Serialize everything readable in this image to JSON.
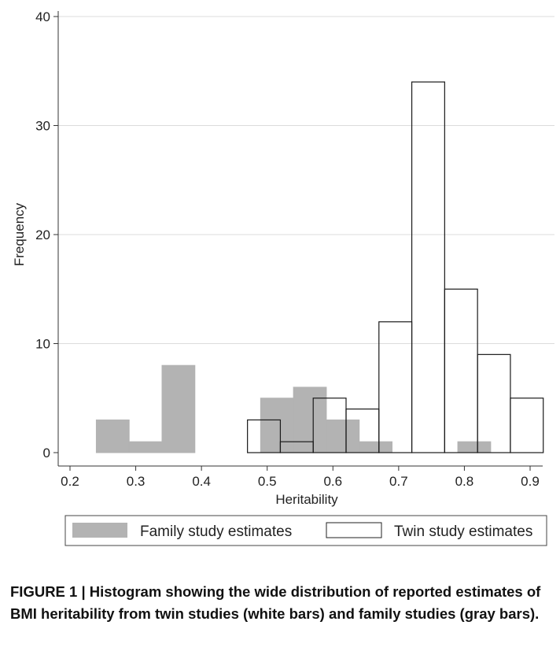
{
  "chart_data": {
    "type": "bar",
    "xlabel": "Heritability",
    "ylabel": "Frequency",
    "xlim": [
      0.2,
      0.92
    ],
    "ylim": [
      0,
      40
    ],
    "x_ticks": [
      "0.2",
      "0.3",
      "0.4",
      "0.5",
      "0.6",
      "0.7",
      "0.8",
      "0.9"
    ],
    "y_ticks": [
      "0",
      "10",
      "20",
      "30",
      "40"
    ],
    "grid": "horizontal",
    "legend_position": "bottom",
    "series": [
      {
        "name": "Family study estimates",
        "color": "#b3b3b3",
        "bins": [
          {
            "x0": 0.24,
            "x1": 0.29,
            "value": 3
          },
          {
            "x0": 0.29,
            "x1": 0.34,
            "value": 1
          },
          {
            "x0": 0.34,
            "x1": 0.39,
            "value": 8
          },
          {
            "x0": 0.49,
            "x1": 0.54,
            "value": 5
          },
          {
            "x0": 0.54,
            "x1": 0.59,
            "value": 6
          },
          {
            "x0": 0.59,
            "x1": 0.64,
            "value": 3
          },
          {
            "x0": 0.64,
            "x1": 0.69,
            "value": 1
          },
          {
            "x0": 0.79,
            "x1": 0.84,
            "value": 1
          }
        ]
      },
      {
        "name": "Twin study estimates",
        "color": "#ffffff",
        "bins": [
          {
            "x0": 0.47,
            "x1": 0.52,
            "value": 3
          },
          {
            "x0": 0.52,
            "x1": 0.57,
            "value": 1
          },
          {
            "x0": 0.57,
            "x1": 0.62,
            "value": 5
          },
          {
            "x0": 0.62,
            "x1": 0.67,
            "value": 4
          },
          {
            "x0": 0.67,
            "x1": 0.72,
            "value": 12
          },
          {
            "x0": 0.72,
            "x1": 0.77,
            "value": 34
          },
          {
            "x0": 0.77,
            "x1": 0.82,
            "value": 15
          },
          {
            "x0": 0.82,
            "x1": 0.87,
            "value": 9
          },
          {
            "x0": 0.87,
            "x1": 0.92,
            "value": 5
          }
        ]
      }
    ]
  },
  "caption": {
    "label": "FIGURE 1 |",
    "text": "Histogram showing the wide distribution of reported estimates of BMI heritability from twin studies (white bars) and family studies (gray bars)."
  }
}
